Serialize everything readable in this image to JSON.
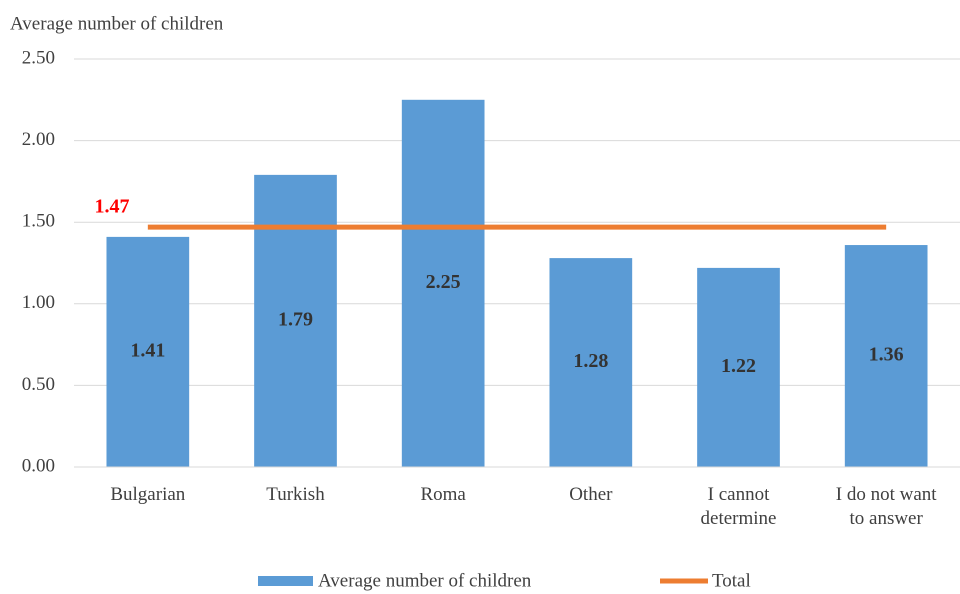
{
  "chart_data": {
    "type": "bar",
    "y_axis_label": "Average number of children",
    "categories": [
      "Bulgarian",
      "Turkish",
      "Roma",
      "Other",
      "I cannot determine",
      "I do not want to answer"
    ],
    "series": [
      {
        "name": "Average number of children",
        "color": "#5b9bd5",
        "values": [
          1.41,
          1.79,
          2.25,
          1.28,
          1.22,
          1.36
        ]
      },
      {
        "name": "Total",
        "type": "line",
        "color": "#ed7d31",
        "value": 1.47,
        "label_color": "#ff0000"
      }
    ],
    "ylim": [
      0,
      2.5
    ],
    "yticks": [
      {
        "value": 0,
        "label": "0.00"
      },
      {
        "value": 0.5,
        "label": "0.50"
      },
      {
        "value": 1,
        "label": "1.00"
      },
      {
        "value": 1.5,
        "label": "1.50"
      },
      {
        "value": 2,
        "label": "2.00"
      },
      {
        "value": 2.5,
        "label": "2.50"
      }
    ],
    "grid": true
  }
}
